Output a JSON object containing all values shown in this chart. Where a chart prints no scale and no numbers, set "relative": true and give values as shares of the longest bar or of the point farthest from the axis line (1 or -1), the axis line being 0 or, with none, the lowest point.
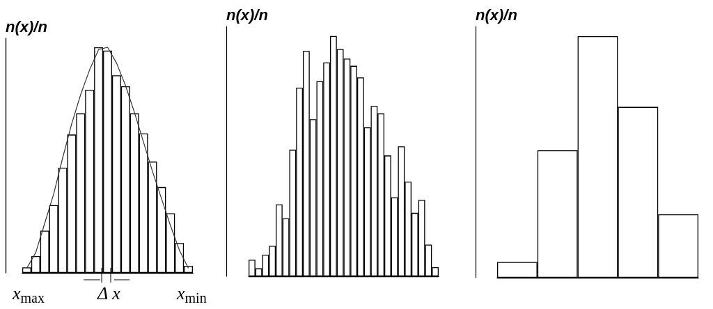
{
  "chart_data": [
    {
      "type": "bar",
      "relative": true,
      "ylabel": "n(x)/n",
      "categories": [
        null,
        null,
        null,
        null,
        null,
        null,
        null,
        null,
        null,
        null,
        null,
        null,
        null,
        null,
        null,
        null,
        null,
        null,
        null
      ],
      "series": [
        {
          "color": "#ffffff",
          "values": [
            0.024,
            0.074,
            0.187,
            0.3,
            0.466,
            0.613,
            0.707,
            0.812,
            1,
            0.985,
            0.876,
            0.827,
            0.707,
            0.618,
            0.493,
            0.38,
            0.264,
            0.132,
            0.031
          ]
        }
      ],
      "annotations": [
        "x$_{max}$",
        "Δ x",
        "x$_{min}$"
      ]
    },
    {
      "type": "line",
      "relative": true,
      "marker": "none",
      "categories": [
        null,
        null,
        null,
        null,
        null,
        null,
        null,
        null,
        null,
        null,
        null,
        null,
        null,
        null,
        null,
        null,
        null,
        null,
        null
      ],
      "series": [
        {
          "color": "#333333",
          "values": [
            0.02,
            0.09,
            0.22,
            0.35,
            0.51,
            0.66,
            0.79,
            0.9,
            0.99,
            1,
            0.93,
            0.83,
            0.71,
            0.58,
            0.45,
            0.33,
            0.21,
            0.1,
            0.02
          ]
        }
      ]
    },
    {
      "type": "bar",
      "relative": true,
      "ylabel": "n(x)/n",
      "categories": [
        null,
        null,
        null,
        null,
        null,
        null,
        null,
        null,
        null,
        null,
        null,
        null,
        null,
        null,
        null,
        null,
        null,
        null,
        null,
        null,
        null,
        null,
        null,
        null,
        null,
        null,
        null,
        null
      ],
      "series": [
        {
          "color": "#ffffff",
          "values": [
            0.069,
            0.033,
            0.09,
            0.127,
            0.299,
            0.241,
            0.527,
            0.785,
            0.938,
            0.654,
            0.812,
            0.89,
            1,
            0.946,
            0.906,
            0.876,
            0.828,
            0.62,
            0.709,
            0.678,
            0.503,
            0.329,
            0.541,
            0.394,
            0.264,
            0.318,
            0.132,
            0.038
          ]
        }
      ]
    },
    {
      "type": "bar",
      "relative": true,
      "ylabel": "n(x)/n",
      "categories": [
        null,
        null,
        null,
        null,
        null
      ],
      "series": [
        {
          "color": "#ffffff",
          "values": [
            0.065,
            0.527,
            1,
            0.707,
            0.262
          ]
        }
      ]
    }
  ]
}
